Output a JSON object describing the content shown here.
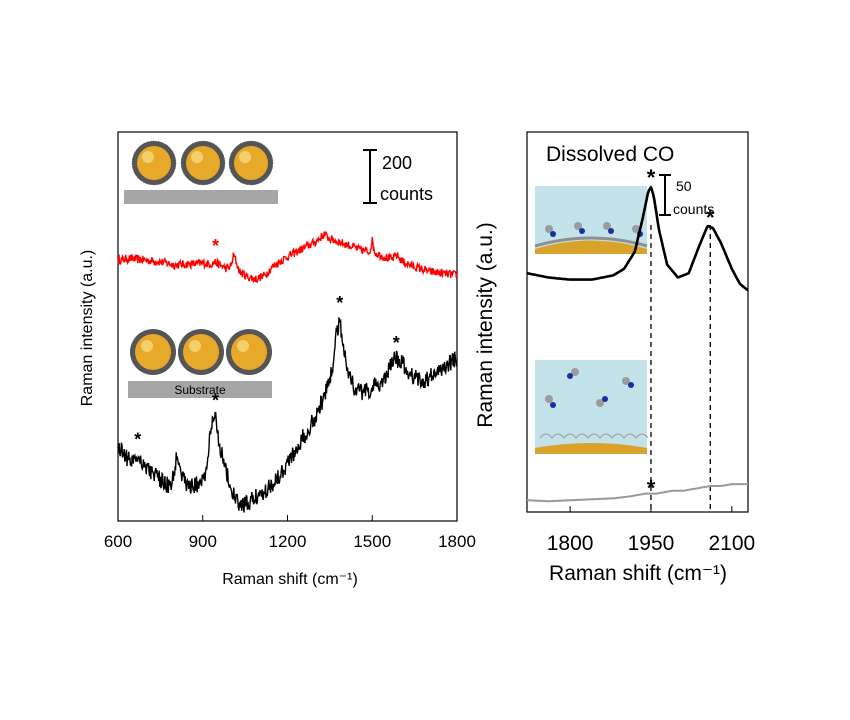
{
  "chart_data": [
    {
      "type": "line",
      "xlabel": "Raman shift (cm⁻¹)",
      "ylabel": "Raman intensity (a.u.)",
      "xlim": [
        600,
        1800
      ],
      "xticks": [
        "600",
        "900",
        "1200",
        "1500",
        "1800"
      ],
      "scale_bar": {
        "value": "200",
        "unit": "counts"
      },
      "inset_label": "Substrate",
      "series": [
        {
          "color": "#ff0000",
          "x": [
            600,
            640,
            700,
            760,
            800,
            850,
            900,
            930,
            945,
            960,
            985,
            1000,
            1010,
            1030,
            1060,
            1090,
            1120,
            1150,
            1200,
            1250,
            1300,
            1330,
            1350,
            1380,
            1420,
            1450,
            1490,
            1500,
            1510,
            1540,
            1570,
            1585,
            1610,
            1650,
            1700,
            1750,
            1800
          ],
          "y": [
            0.62,
            0.64,
            0.62,
            0.6,
            0.57,
            0.58,
            0.59,
            0.58,
            0.6,
            0.57,
            0.53,
            0.56,
            0.68,
            0.5,
            0.44,
            0.42,
            0.46,
            0.56,
            0.66,
            0.74,
            0.82,
            0.9,
            0.85,
            0.82,
            0.78,
            0.74,
            0.71,
            0.83,
            0.7,
            0.66,
            0.63,
            0.68,
            0.6,
            0.55,
            0.5,
            0.48,
            0.46
          ],
          "markers": [
            945
          ]
        },
        {
          "color": "#000000",
          "x": [
            600,
            620,
            640,
            670,
            700,
            730,
            760,
            790,
            810,
            830,
            850,
            880,
            910,
            930,
            945,
            960,
            980,
            1000,
            1030,
            1060,
            1090,
            1120,
            1150,
            1200,
            1250,
            1300,
            1340,
            1360,
            1375,
            1385,
            1400,
            1420,
            1440,
            1470,
            1500,
            1530,
            1560,
            1580,
            1600,
            1620,
            1650,
            1680,
            1700,
            1730,
            1760,
            1800
          ],
          "y": [
            0.32,
            0.3,
            0.25,
            0.28,
            0.22,
            0.18,
            0.14,
            0.12,
            0.3,
            0.16,
            0.12,
            0.13,
            0.18,
            0.42,
            0.48,
            0.33,
            0.22,
            0.1,
            0.02,
            0.03,
            0.07,
            0.1,
            0.14,
            0.24,
            0.36,
            0.48,
            0.62,
            0.74,
            0.92,
            0.98,
            0.82,
            0.68,
            0.62,
            0.6,
            0.62,
            0.65,
            0.72,
            0.78,
            0.76,
            0.72,
            0.68,
            0.66,
            0.68,
            0.7,
            0.74,
            0.78
          ],
          "markers": [
            670,
            945,
            1385,
            1585
          ]
        }
      ],
      "marker_symbol": "*"
    },
    {
      "type": "line",
      "title": "Dissolved CO",
      "xlabel": "Raman shift (cm⁻¹)",
      "ylabel": "Raman intensity (a.u.)",
      "xlim": [
        1720,
        2130
      ],
      "xticks": [
        "1800",
        "1950",
        "2100"
      ],
      "xtick_values": [
        1800,
        1950,
        2100
      ],
      "scale_bar": {
        "value": "50",
        "unit": "counts"
      },
      "reference_lines": [
        1950,
        2060
      ],
      "series": [
        {
          "color": "#000000",
          "x": [
            1720,
            1760,
            1800,
            1840,
            1880,
            1900,
            1920,
            1935,
            1945,
            1950,
            1955,
            1965,
            1980,
            2000,
            2020,
            2040,
            2055,
            2065,
            2080,
            2100,
            2115,
            2130
          ],
          "y": [
            0.52,
            0.5,
            0.49,
            0.49,
            0.51,
            0.54,
            0.62,
            0.78,
            0.9,
            0.92,
            0.88,
            0.72,
            0.56,
            0.5,
            0.52,
            0.65,
            0.74,
            0.73,
            0.66,
            0.54,
            0.47,
            0.44
          ],
          "markers": [
            1950,
            2060
          ]
        },
        {
          "color": "#999999",
          "x": [
            1720,
            1760,
            1800,
            1840,
            1880,
            1910,
            1940,
            1960,
            1990,
            2010,
            2040,
            2060,
            2080,
            2100,
            2130
          ],
          "y": [
            0.05,
            0.04,
            0.05,
            0.06,
            0.07,
            0.09,
            0.12,
            0.12,
            0.15,
            0.15,
            0.18,
            0.2,
            0.2,
            0.22,
            0.22
          ],
          "markers": [
            1950
          ]
        }
      ],
      "marker_symbol": "*"
    }
  ]
}
